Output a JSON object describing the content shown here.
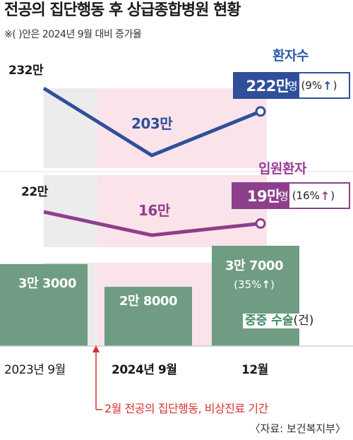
{
  "title": "전공의 집단행동 후 상급종합병원 현황",
  "subtitle": "※( )안은 2024년 9월 대비 증가율",
  "chart_data": {
    "type": "bar+line",
    "categories": [
      "2023년 9월",
      "2024년 9월",
      "12월"
    ],
    "series": [
      {
        "name": "환자수",
        "type": "line",
        "values": [
          2320000,
          2030000,
          2220000
        ],
        "labels": [
          "232만",
          "203만",
          "222만"
        ],
        "color": "#2f4f9a"
      },
      {
        "name": "입원환자",
        "type": "line",
        "values": [
          220000,
          160000,
          190000
        ],
        "labels": [
          "22만",
          "16만",
          "19만"
        ],
        "color": "#8e3f8b"
      },
      {
        "name": "중증 수술",
        "unit": "(건)",
        "type": "bar",
        "values": [
          33000,
          28000,
          37000
        ],
        "labels": [
          "3만 3000",
          "2만 8000",
          "3만 7000"
        ],
        "color": "#6f9c82"
      }
    ]
  },
  "legend": {
    "patients": "환자수",
    "inpatients": "입원환자",
    "surgery": "중증 수술",
    "surgery_unit": "(건)"
  },
  "callouts": {
    "patients_value": "222만",
    "patients_unit": "명",
    "patients_pct": "(9%",
    "inpatients_value": "19만",
    "inpatients_unit": "명",
    "inpatients_pct": "(16%",
    "arrow": "↑",
    "close_paren": ")",
    "surgery_pct": "(35%"
  },
  "annotation": "2월 전공의 집단행동, 비상진료 기간",
  "source": "〈자료: 보건복지부〉",
  "colors": {
    "blue": "#2f4f9a",
    "purple": "#8e3f8b",
    "green": "#6f9c82",
    "pink_band": "#fbe3ea",
    "gray_band": "#ececec",
    "red": "#d7312f"
  }
}
